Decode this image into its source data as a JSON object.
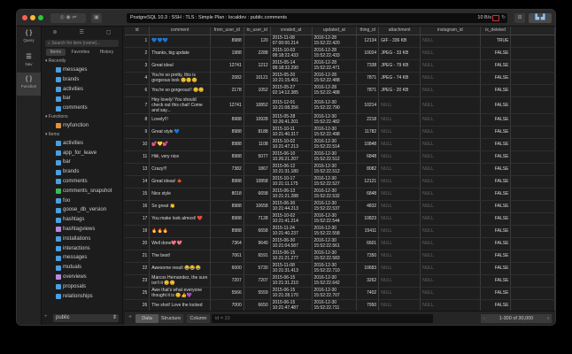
{
  "titlebar": {
    "connection": "PostgreSQL 10.3 : SSH : TLS : Simple Plan : localdev : public.comments",
    "rate": "10 B/s"
  },
  "rail": [
    {
      "label": "Query"
    },
    {
      "label": "Nav"
    },
    {
      "label": "Function"
    }
  ],
  "sidebar": {
    "search_placeholder": "Search for item (name)...",
    "tabs": [
      "Items",
      "Favorites",
      "History"
    ],
    "sections": [
      {
        "title": "Recently",
        "items": [
          {
            "name": "messages",
            "kind": "table"
          },
          {
            "name": "brands",
            "kind": "table"
          },
          {
            "name": "activities",
            "kind": "table"
          },
          {
            "name": "bar",
            "kind": "table"
          },
          {
            "name": "comments",
            "kind": "table"
          }
        ]
      },
      {
        "title": "Functions",
        "items": [
          {
            "name": "myfunction",
            "kind": "function"
          }
        ]
      },
      {
        "title": "Items",
        "items": [
          {
            "name": "activities",
            "kind": "table"
          },
          {
            "name": "app_for_leave",
            "kind": "table"
          },
          {
            "name": "bar",
            "kind": "table"
          },
          {
            "name": "brands",
            "kind": "table"
          },
          {
            "name": "comments",
            "kind": "table"
          },
          {
            "name": "comments_snapshot",
            "kind": "snapshot"
          },
          {
            "name": "foo",
            "kind": "table"
          },
          {
            "name": "goose_db_version",
            "kind": "table"
          },
          {
            "name": "hashtags",
            "kind": "table"
          },
          {
            "name": "hashtagviews",
            "kind": "view"
          },
          {
            "name": "installations",
            "kind": "table"
          },
          {
            "name": "interactions",
            "kind": "table"
          },
          {
            "name": "messages",
            "kind": "table"
          },
          {
            "name": "mutuals",
            "kind": "table"
          },
          {
            "name": "overviews",
            "kind": "view"
          },
          {
            "name": "proposals",
            "kind": "table"
          },
          {
            "name": "relationships",
            "kind": "table"
          }
        ]
      }
    ],
    "schema": "public",
    "kind_colors": {
      "table": "#4a9fe0",
      "snapshot": "#3cba54",
      "view": "#b48ae0",
      "function": "#e09040"
    }
  },
  "table": {
    "columns": [
      "id",
      "comment",
      "from_user_id",
      "to_user_id",
      "created_at",
      "updated_at",
      "thing_id",
      "attachment",
      "instagram_id",
      "is_deleted"
    ],
    "rows": [
      [
        "1",
        "💙💙💙",
        "8988",
        "120",
        "2015-11-08 07:00:00.214",
        "2016-12-28 15:52:22.420",
        "12134",
        "GIF - 336 KB",
        "NULL",
        "TRUE"
      ],
      [
        "2",
        "Thanks, big update",
        "1988",
        "2288",
        "2015-10-03 08:18:22.433",
        "2016-12-28 15:52:22.433",
        "10024",
        "JPEG - 33 KB",
        "NULL",
        "FALSE"
      ],
      [
        "3",
        "Great idea!",
        "12741",
        "1212",
        "2015-05-14 08:18:32.290",
        "2016-12-28 15:52:22.471",
        "7338",
        "JPEG - 79 KB",
        "NULL",
        "FALSE"
      ],
      [
        "4",
        "You're so pretty, this is gorgeous look 😊😊😊",
        "2082",
        "10121",
        "2015-05-20 10:21:15.401",
        "2016-12-28 15:52:22.488",
        "7871",
        "JPEG - 74 KB",
        "NULL",
        "FALSE"
      ],
      [
        "6",
        "You're so gorgeous!! 😊😊",
        "2178",
        "1052",
        "2015-05-27 02:14:12.385",
        "2016-12-28 15:52:22.488",
        "7871",
        "JPEG - 20 KB",
        "NULL",
        "FALSE"
      ],
      [
        "7",
        "Hey lovely! You should check out this chat! Come and say...",
        "12741",
        "10852",
        "2015-12-01 10:21:08.356",
        "2016-12-30 15:52:22.790",
        "10214",
        "NULL",
        "NULL",
        "FALSE"
      ],
      [
        "8",
        "Lovely!!!",
        "8988",
        "10928",
        "2015-05-28 10:26:41.201",
        "2016-12-30 15:52:22.482",
        "2218",
        "NULL",
        "NULL",
        "FALSE"
      ],
      [
        "9",
        "Great style 💙",
        "8988",
        "8188",
        "2015-10-11 10:21:40.317",
        "2016-12-30 15:52:22.498",
        "11782",
        "NULL",
        "NULL",
        "FALSE"
      ],
      [
        "10",
        "💕💛💕",
        "8988",
        "1108",
        "2015-10-02 10:21:47.213",
        "2016-12-30 15:52:22.514",
        "10848",
        "NULL",
        "NULL",
        "FALSE"
      ],
      [
        "11",
        "Hiiii, very nice",
        "8988",
        "5077",
        "2015-06-10 10:26:21.207",
        "2016-12-30 15:52:22.512",
        "6848",
        "NULL",
        "NULL",
        "FALSE"
      ],
      [
        "13",
        "Crazy!!!",
        "7382",
        "1867",
        "2015-06-12 10:21:31.180",
        "2016-12-30 15:52:22.512",
        "8082",
        "NULL",
        "NULL",
        "FALSE"
      ],
      [
        "14",
        "Great ideas! 🍁",
        "8988",
        "10858",
        "2015-10-17 10:21:11.175",
        "2016-12-30 15:52:22.527",
        "12121",
        "NULL",
        "NULL",
        "FALSE"
      ],
      [
        "15",
        "Nice style",
        "8018",
        "6658",
        "2015-06-13 10:21:21.288",
        "2016-12-30 15:52:22.532",
        "6848",
        "NULL",
        "NULL",
        "FALSE"
      ],
      [
        "16",
        "So great 👏",
        "8988",
        "10658",
        "2015-06-30 10:21:44.213",
        "2016-12-30 15:52:22.537",
        "4832",
        "NULL",
        "NULL",
        "FALSE"
      ],
      [
        "17",
        "You make look almost! ❤️",
        "8988",
        "7128",
        "2015-10-02 10:21:41.214",
        "2016-12-30 15:52:22.544",
        "10823",
        "NULL",
        "NULL",
        "FALSE"
      ],
      [
        "19",
        "🔥🔥🔥",
        "8988",
        "6658",
        "2015-11-24 10:21:40.237",
        "2016-12-30 15:52:22.558",
        "15411",
        "NULL",
        "NULL",
        "FALSE"
      ],
      [
        "20",
        "Well done💖💖",
        "7364",
        "9640",
        "2015-06-30 10:21:04.587",
        "2016-12-30 15:52:22.561",
        "6601",
        "NULL",
        "NULL",
        "FALSE"
      ],
      [
        "21",
        "The best!",
        "7061",
        "6591",
        "2015-06-15 10:21:21.277",
        "2016-12-30 15:52:22.583",
        "7350",
        "NULL",
        "NULL",
        "FALSE"
      ],
      [
        "22",
        "Awesome result 😂😂😂",
        "6000",
        "5730",
        "2015-11-08 10:21:31.413",
        "2016-12-30 15:52:22.710",
        "10683",
        "NULL",
        "NULL",
        "FALSE"
      ],
      [
        "23",
        "Marcos Hernandez, the sure isn't it 😊😊",
        "7207",
        "7207",
        "2015-06-15 10:21:31.210",
        "2016-12-30 15:52:22.642",
        "3262",
        "NULL",
        "NULL",
        "FALSE"
      ],
      [
        "25",
        "Awe that's what everyone thought it is 😊👍💜",
        "5566",
        "5559",
        "2015-06-15 10:21:28.170",
        "2016-12-30 15:52:22.707",
        "7402",
        "NULL",
        "NULL",
        "FALSE"
      ],
      [
        "26",
        "The shot! Love the locked",
        "7000",
        "6650",
        "2015-06-15 10:21:47.487",
        "2016-12-30 15:52:22.711",
        "7950",
        "NULL",
        "NULL",
        "FALSE"
      ]
    ]
  },
  "footer": {
    "add": "+",
    "tabs": [
      "Data",
      "Structure",
      "Column"
    ],
    "active_tab": "Data",
    "filter": "id = 10",
    "pagination": "1-300 of 30,000",
    "prev": "‹",
    "next": "›"
  }
}
